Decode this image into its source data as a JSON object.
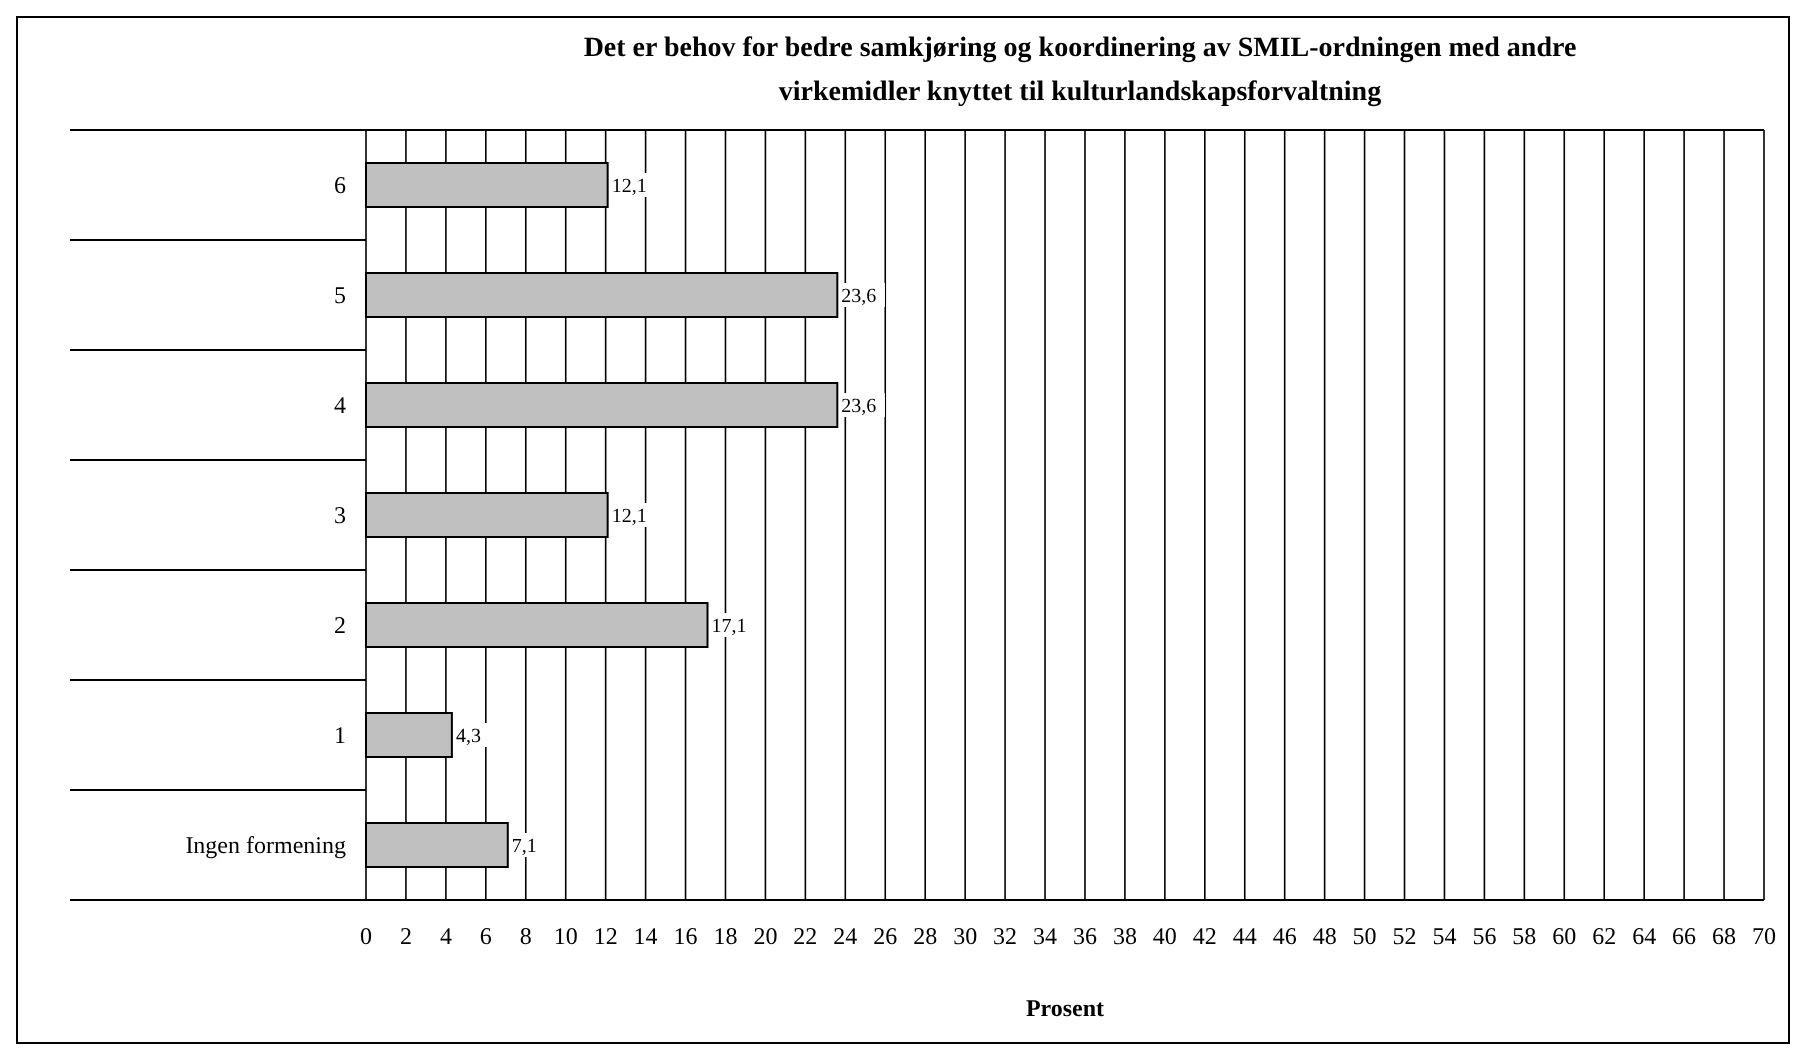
{
  "chart_data": {
    "type": "bar",
    "orientation": "horizontal",
    "title": "Det er behov for bedre samkjøring og koordinering av SMIL-ordningen med andre virkemidler knyttet til kulturlandskapsforvaltning",
    "xlabel": "Prosent",
    "categories": [
      "6",
      "5",
      "4",
      "3",
      "2",
      "1",
      "Ingen formening"
    ],
    "values": [
      12.1,
      23.6,
      23.6,
      12.1,
      17.1,
      4.3,
      7.1
    ],
    "value_labels": [
      "12,1",
      "23,6",
      "23,6",
      "12,1",
      "17,1",
      "4,3",
      "7,1"
    ],
    "color": "#c0c0c0",
    "xlim": [
      0,
      70
    ],
    "xticks": [
      0,
      2,
      4,
      6,
      8,
      10,
      12,
      14,
      16,
      18,
      20,
      22,
      24,
      26,
      28,
      30,
      32,
      34,
      36,
      38,
      40,
      42,
      44,
      46,
      48,
      50,
      52,
      54,
      56,
      58,
      60,
      62,
      64,
      66,
      68,
      70
    ],
    "grid": "x"
  }
}
